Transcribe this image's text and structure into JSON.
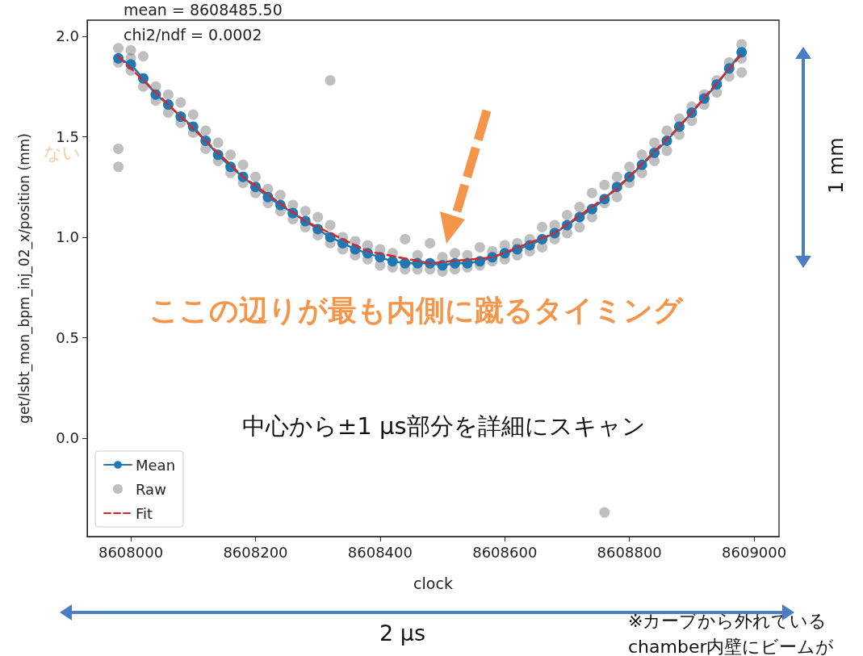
{
  "chart_data": {
    "type": "scatter",
    "xlabel": "clock",
    "ylabel": "get/lsbt_mon_bpm_inj_02_x/position (mm)",
    "xlim": [
      8607930,
      8609040
    ],
    "ylim": [
      -0.49,
      2.08
    ],
    "xticks": [
      8608000,
      8608200,
      8608400,
      8608600,
      8608800,
      8609000
    ],
    "yticks": [
      {
        "value": 0,
        "label": "0.0"
      },
      {
        "value": 0.5,
        "label": "0.5"
      },
      {
        "value": 1,
        "label": "1.0"
      },
      {
        "value": 1.5,
        "label": "1.5"
      },
      {
        "value": 2,
        "label": "2.0"
      }
    ],
    "grid": false,
    "legend": "bottom left",
    "series": [
      {
        "name": "Raw",
        "marker": "circle",
        "color": "#808080",
        "x": [
          8607980,
          8607980,
          8607980,
          8607980,
          8608000,
          8608000,
          8608000,
          8608020,
          8608020,
          8608040,
          8608040,
          8608060,
          8608060,
          8608080,
          8608080,
          8608100,
          8608100,
          8608120,
          8608120,
          8608140,
          8608140,
          8608160,
          8608160,
          8608180,
          8608180,
          8608200,
          8608200,
          8608220,
          8608220,
          8608240,
          8608240,
          8608260,
          8608260,
          8608280,
          8608280,
          8608300,
          8608300,
          8608320,
          8608320,
          8608320,
          8608340,
          8608340,
          8608360,
          8608360,
          8608380,
          8608380,
          8608400,
          8608400,
          8608420,
          8608420,
          8608440,
          8608440,
          8608460,
          8608460,
          8608480,
          8608480,
          8608500,
          8608500,
          8608520,
          8608520,
          8608540,
          8608540,
          8608560,
          8608560,
          8608580,
          8608580,
          8608600,
          8608600,
          8608620,
          8608620,
          8608640,
          8608640,
          8608660,
          8608660,
          8608680,
          8608680,
          8608700,
          8608700,
          8608720,
          8608720,
          8608740,
          8608740,
          8608760,
          8608760,
          8608760,
          8608780,
          8608780,
          8608800,
          8608800,
          8608820,
          8608820,
          8608840,
          8608840,
          8608860,
          8608860,
          8608880,
          8608880,
          8608900,
          8608900,
          8608920,
          8608920,
          8608940,
          8608940,
          8608960,
          8608960,
          8608980,
          8608980,
          8608980
        ],
        "values": [
          1.94,
          1.87,
          1.44,
          1.35,
          1.93,
          1.83,
          1.89,
          1.9,
          1.75,
          1.75,
          1.68,
          1.71,
          1.62,
          1.67,
          1.57,
          1.61,
          1.52,
          1.53,
          1.44,
          1.47,
          1.38,
          1.41,
          1.32,
          1.36,
          1.27,
          1.3,
          1.22,
          1.24,
          1.17,
          1.21,
          1.13,
          1.16,
          1.09,
          1.13,
          1.05,
          1.1,
          1.01,
          1.06,
          0.97,
          1.78,
          1.0,
          0.94,
          0.98,
          0.91,
          0.96,
          0.89,
          0.94,
          0.86,
          0.92,
          0.85,
          0.99,
          0.84,
          0.91,
          0.84,
          0.97,
          0.84,
          0.9,
          0.83,
          0.92,
          0.84,
          0.91,
          0.85,
          0.95,
          0.86,
          0.93,
          0.88,
          0.96,
          0.89,
          0.97,
          0.91,
          0.99,
          0.93,
          1.05,
          0.95,
          1.06,
          0.99,
          1.11,
          1.02,
          1.15,
          1.05,
          1.22,
          1.1,
          1.26,
          1.17,
          -0.37,
          1.3,
          1.2,
          1.35,
          1.27,
          1.41,
          1.32,
          1.47,
          1.38,
          1.53,
          1.43,
          1.59,
          1.51,
          1.65,
          1.58,
          1.71,
          1.66,
          1.78,
          1.72,
          1.87,
          1.8,
          1.96,
          1.89,
          1.82
        ]
      },
      {
        "name": "Mean",
        "type": "line",
        "marker": "circle",
        "line_style": "solid",
        "color": "#1f77b4",
        "x": [
          8607980,
          8608000,
          8608020,
          8608040,
          8608060,
          8608080,
          8608100,
          8608120,
          8608140,
          8608160,
          8608180,
          8608200,
          8608220,
          8608240,
          8608260,
          8608280,
          8608300,
          8608320,
          8608340,
          8608360,
          8608380,
          8608400,
          8608420,
          8608440,
          8608460,
          8608480,
          8608500,
          8608520,
          8608540,
          8608560,
          8608580,
          8608600,
          8608620,
          8608640,
          8608660,
          8608680,
          8608700,
          8608720,
          8608740,
          8608760,
          8608780,
          8608800,
          8608820,
          8608840,
          8608860,
          8608880,
          8608900,
          8608920,
          8608940,
          8608960,
          8608980
        ],
        "values": [
          1.89,
          1.86,
          1.79,
          1.71,
          1.66,
          1.6,
          1.55,
          1.48,
          1.41,
          1.35,
          1.3,
          1.25,
          1.2,
          1.16,
          1.12,
          1.08,
          1.04,
          1.0,
          0.97,
          0.94,
          0.92,
          0.9,
          0.88,
          0.87,
          0.87,
          0.87,
          0.86,
          0.87,
          0.87,
          0.88,
          0.9,
          0.92,
          0.94,
          0.96,
          0.99,
          1.02,
          1.06,
          1.1,
          1.14,
          1.19,
          1.25,
          1.3,
          1.36,
          1.42,
          1.48,
          1.55,
          1.62,
          1.69,
          1.76,
          1.84,
          1.92
        ]
      },
      {
        "name": "Fit",
        "type": "line",
        "marker": "none",
        "line_style": "dashed",
        "color": "#d62728",
        "x": [
          8607980,
          8608080,
          8608180,
          8608280,
          8608380,
          8608480,
          8608580,
          8608680,
          8608780,
          8608880,
          8608980
        ],
        "values": [
          1.9,
          1.6,
          1.3,
          1.08,
          0.93,
          0.87,
          0.9,
          1.02,
          1.24,
          1.55,
          1.91
        ]
      }
    ],
    "annotations": [
      "mean = 8608485.50",
      "chi2/ndf = 0.0002",
      "ここの辺りが最も内側に蹴るタイミング",
      "中心から±1 μs部分を詳細にスキャン",
      "1 mm",
      "2 μs",
      "※カーブから外れている",
      "chamber内壁にビームが",
      "ない"
    ]
  }
}
